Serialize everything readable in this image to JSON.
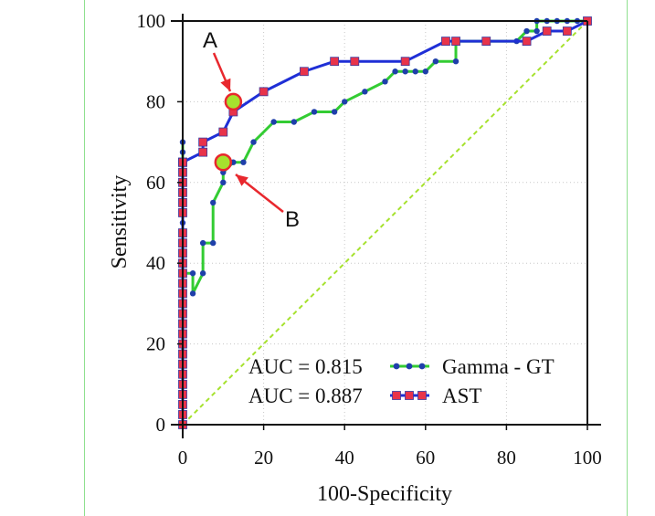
{
  "chart_data": {
    "type": "line",
    "xlabel": "100-Specificity",
    "ylabel": "Sensitivity",
    "xlim": [
      0,
      100
    ],
    "ylim": [
      0,
      100
    ],
    "x_ticks": [
      "0",
      "20",
      "40",
      "60",
      "80",
      "100"
    ],
    "y_ticks": [
      "0",
      "20",
      "40",
      "60",
      "80",
      "100"
    ],
    "grid": "dotted",
    "legend_position": "bottom-right",
    "reference_line": {
      "x": [
        0,
        100
      ],
      "y": [
        0,
        100
      ],
      "color": "#a6e22e",
      "style": "dashed"
    },
    "series": [
      {
        "name": "Gamma - GT",
        "auc_label": "AUC = 0.815",
        "line_color": "#33cc33",
        "marker_color": "#1f3faa",
        "marker": "circle",
        "x": [
          0,
          0,
          0,
          0,
          0,
          0,
          0,
          0,
          0,
          0,
          0,
          0,
          0,
          0,
          0,
          0,
          0,
          0,
          0,
          0,
          0,
          0,
          0,
          0,
          0,
          0,
          0,
          0,
          0,
          0,
          0,
          0,
          2.5,
          2.5,
          5,
          5,
          7.5,
          7.5,
          10,
          10,
          12.5,
          15,
          17.5,
          22.5,
          27.5,
          32.5,
          37.5,
          40,
          45,
          50,
          52.5,
          55,
          57.5,
          60,
          62.5,
          67.5,
          67.5,
          75,
          82.5,
          85,
          87.5,
          87.5,
          90,
          92.5,
          95,
          97.5,
          100
        ],
        "y": [
          0,
          2.5,
          5,
          7.5,
          10,
          12.5,
          15,
          17.5,
          20,
          22.5,
          25,
          27.5,
          30,
          32.5,
          35,
          37.5,
          40,
          42.5,
          45,
          47.5,
          50,
          52.5,
          55,
          57.5,
          60,
          62.5,
          65,
          67.5,
          70,
          32.5,
          35,
          37.5,
          37.5,
          32.5,
          37.5,
          45,
          45,
          55,
          60,
          62.5,
          65,
          65,
          70,
          75,
          75,
          77.5,
          77.5,
          80,
          82.5,
          85,
          87.5,
          87.5,
          87.5,
          87.5,
          90,
          90,
          95,
          95,
          95,
          97.5,
          97.5,
          100,
          100,
          100,
          100,
          100,
          100
        ]
      },
      {
        "name": "AST",
        "auc_label": "AUC = 0.887",
        "line_color": "#1f2fd6",
        "marker_color": "#e8334a",
        "marker": "square",
        "x": [
          0,
          0,
          0,
          0,
          0,
          0,
          0,
          0,
          0,
          0,
          0,
          0,
          0,
          0,
          0,
          0,
          0,
          0,
          0,
          0,
          0,
          0,
          0,
          0,
          0,
          0,
          0,
          0,
          0,
          5,
          5,
          10,
          12.5,
          20,
          30,
          37.5,
          42.5,
          55,
          65,
          67.5,
          75,
          85,
          90,
          95,
          100
        ],
        "y": [
          0,
          2.5,
          5,
          7.5,
          10,
          12.5,
          15,
          17.5,
          20,
          22.5,
          25,
          27.5,
          30,
          32.5,
          35,
          37.5,
          40,
          42.5,
          45,
          47.5,
          52.5,
          55,
          57.5,
          60,
          62.5,
          65,
          65,
          65,
          65,
          67.5,
          70,
          72.5,
          77.5,
          82.5,
          87.5,
          90,
          90,
          90,
          95,
          95,
          95,
          95,
          97.5,
          97.5,
          100
        ]
      }
    ],
    "annotations": [
      {
        "label": "A",
        "x": 12.5,
        "y": 80,
        "marker_fill": "#a6e22e",
        "arrow_color": "#e8282e"
      },
      {
        "label": "B",
        "x": 10,
        "y": 65,
        "marker_fill": "#a6e22e",
        "arrow_color": "#e8282e"
      }
    ]
  }
}
